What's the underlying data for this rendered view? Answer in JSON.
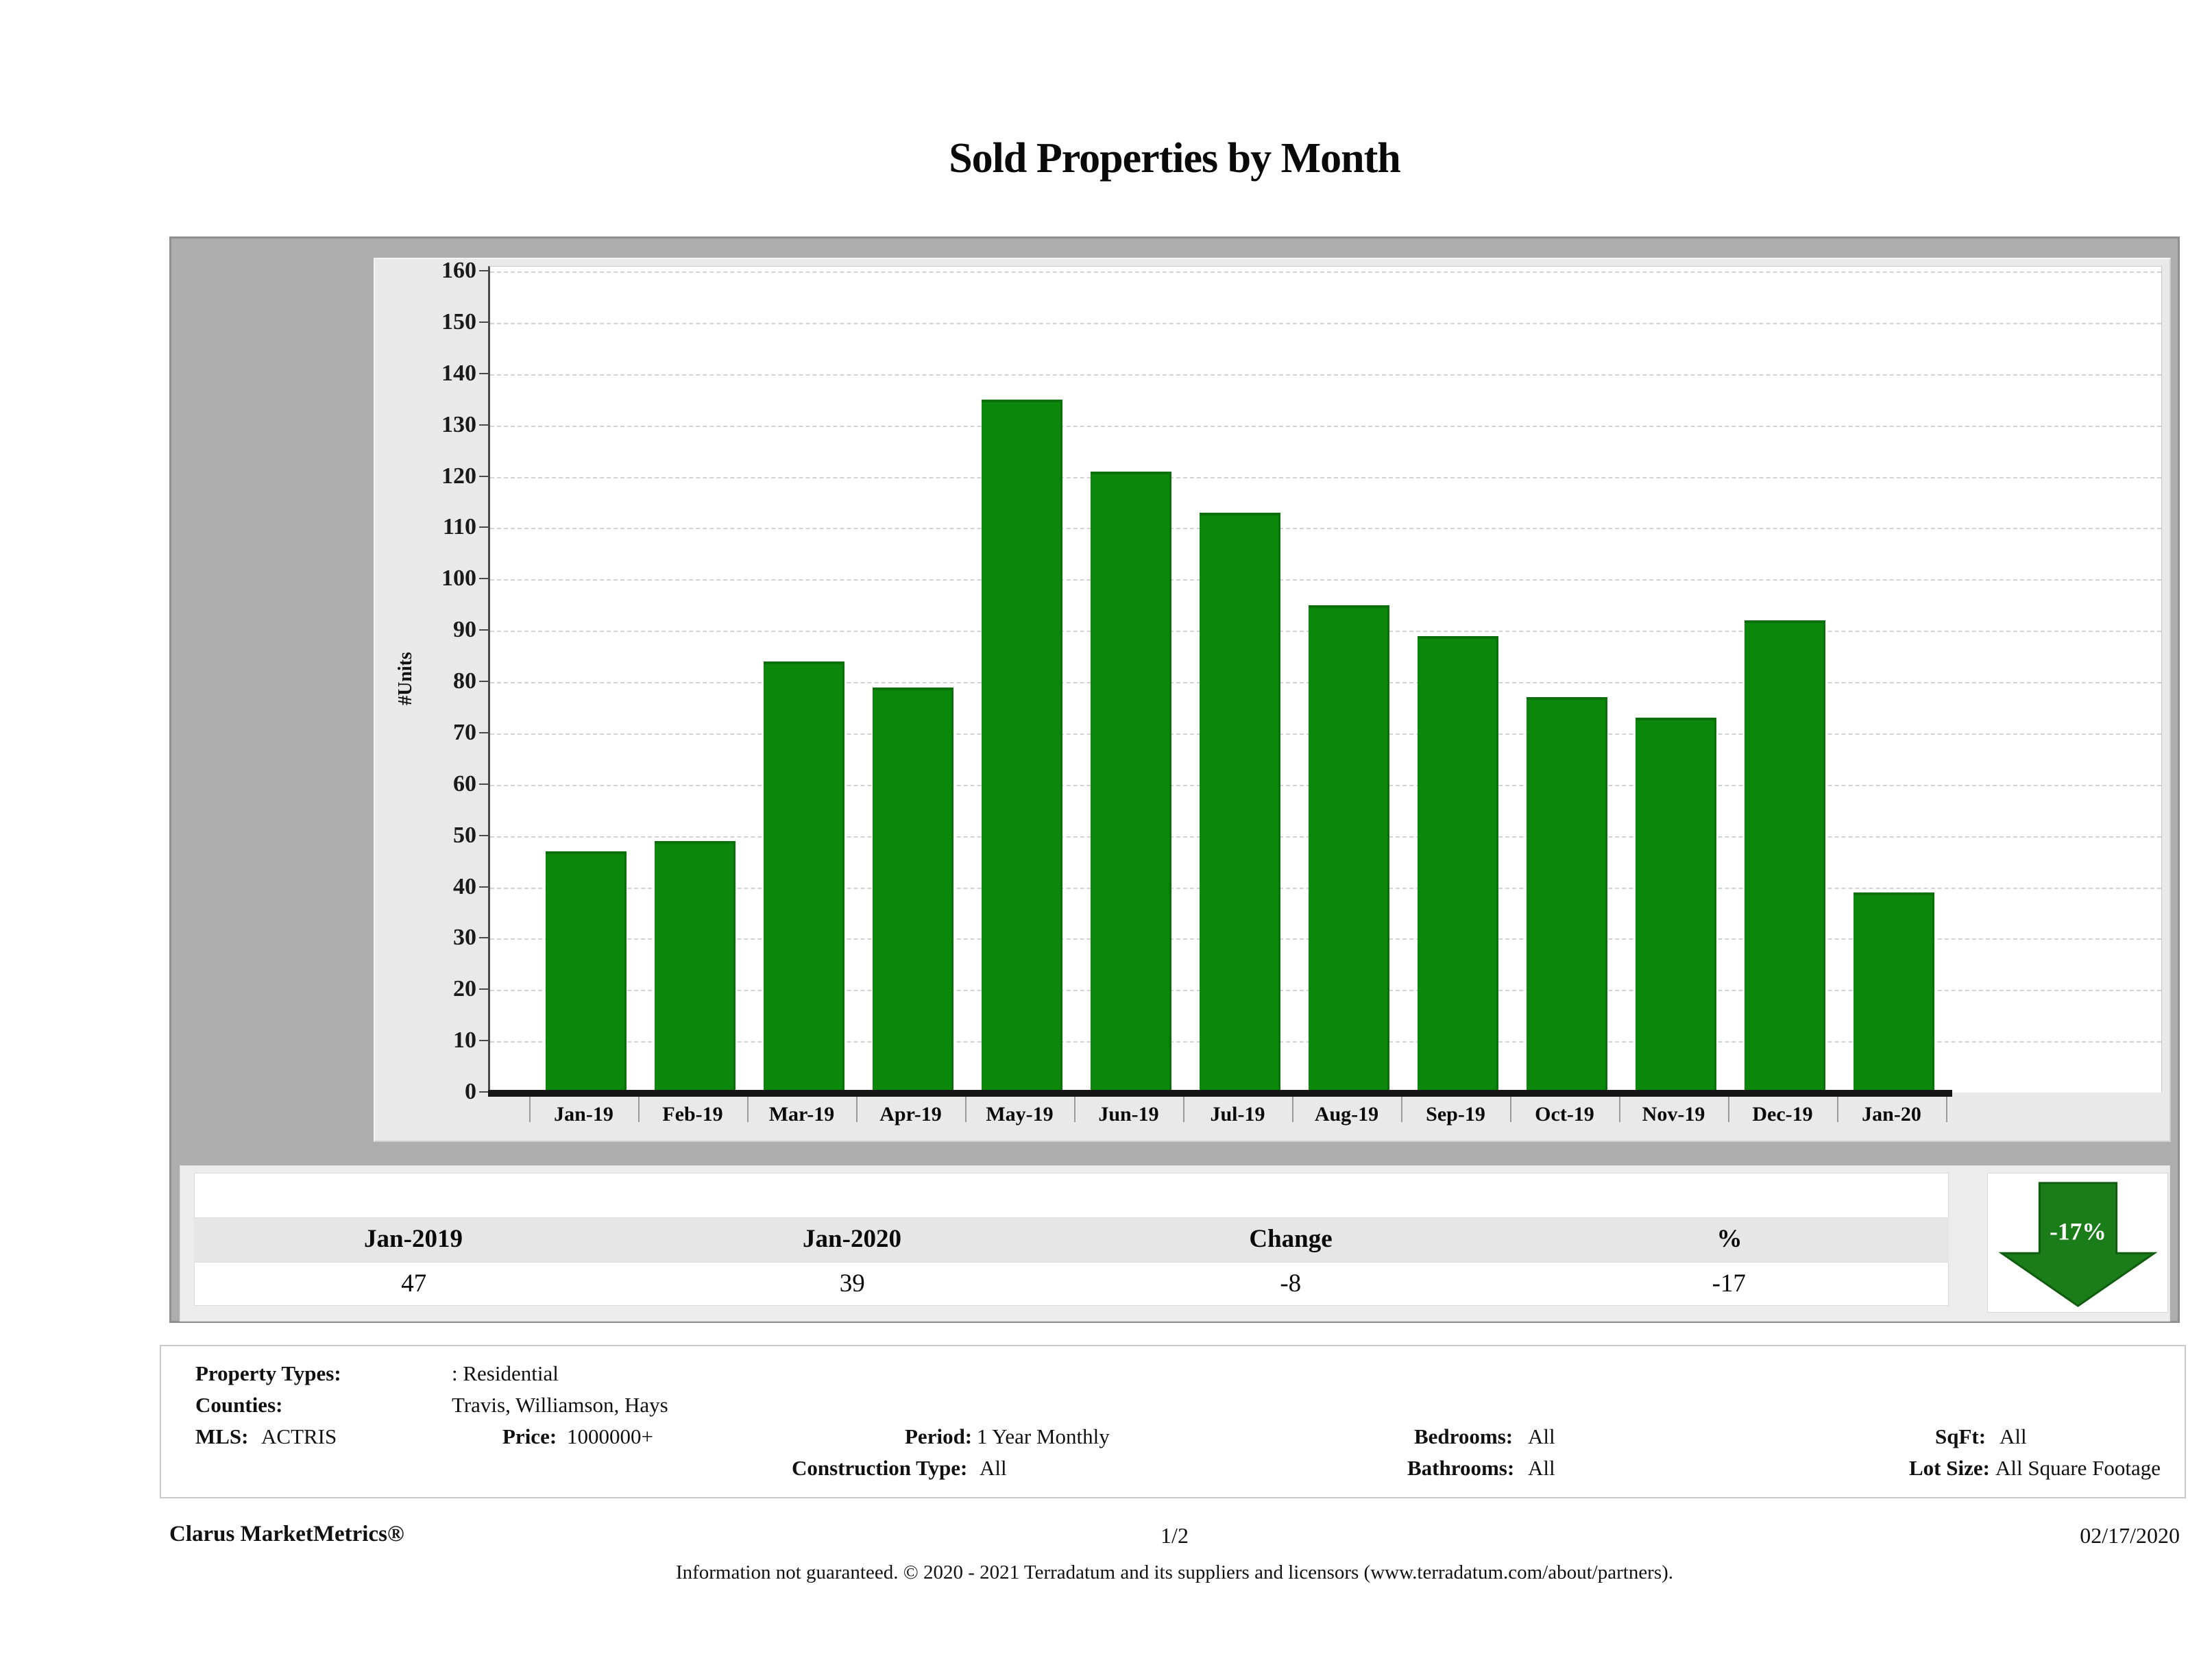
{
  "title": "Sold Properties by Month",
  "chart_data": {
    "type": "bar",
    "title": "Sold Properties by Month",
    "categories": [
      "Jan-19",
      "Feb-19",
      "Mar-19",
      "Apr-19",
      "May-19",
      "Jun-19",
      "Jul-19",
      "Aug-19",
      "Sep-19",
      "Oct-19",
      "Nov-19",
      "Dec-19",
      "Jan-20"
    ],
    "values": [
      47,
      49,
      84,
      79,
      135,
      121,
      113,
      95,
      89,
      77,
      73,
      92,
      39
    ],
    "xlabel": "",
    "ylabel": "#Units",
    "ylim": [
      0,
      160
    ],
    "ytick_step": 10,
    "grid": "horizontal-dashed",
    "legend": "none",
    "bar_color": "#0B870B"
  },
  "summary_table": {
    "headers": [
      "Jan-2019",
      "Jan-2020",
      "Change",
      "%"
    ],
    "values": [
      "47",
      "39",
      "-8",
      "-17"
    ]
  },
  "change_indicator": {
    "label": "-17%",
    "direction": "down",
    "color": "#1A7D1A",
    "border_color": "#0F5C0F"
  },
  "filters": {
    "property_types_label": "Property Types:",
    "property_types": ": Residential",
    "counties_label": "Counties:",
    "counties": "Travis, Williamson, Hays",
    "mls_label": "MLS:",
    "mls": "ACTRIS",
    "price_label": "Price:",
    "price": "1000000+",
    "period_label": "Period:",
    "period": "1 Year Monthly",
    "construction_label": "Construction Type:",
    "construction": "All",
    "bedrooms_label": "Bedrooms:",
    "bedrooms": "All",
    "bathrooms_label": "Bathrooms:",
    "bathrooms": "All",
    "sqft_label": "SqFt:",
    "sqft": "All",
    "lot_size_label": "Lot Size:",
    "lot_size": "All Square Footage"
  },
  "footer": {
    "brand": "Clarus MarketMetrics®",
    "page": "1/2",
    "date": "02/17/2020",
    "disclaimer": "Information not guaranteed. © 2020 - 2021 Terradatum and its suppliers and licensors (www.terradatum.com/about/partners)."
  }
}
